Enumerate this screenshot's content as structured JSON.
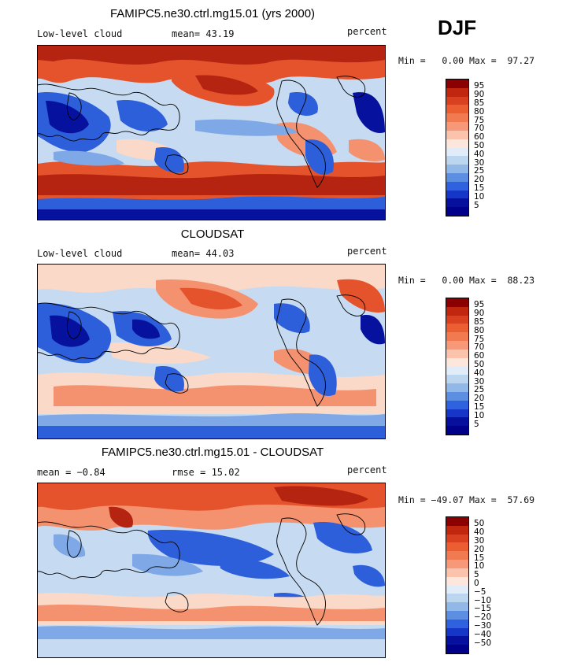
{
  "season": "DJF",
  "panels": [
    {
      "title": "FAMIPC5.ne30.ctrl.mg15.01 (yrs 2000)",
      "left_label": "Low-level cloud",
      "center_label": "mean=  43.19",
      "right_label": "percent",
      "minmax": "Min =   0.00 Max =  97.27",
      "levels": [
        "95",
        "90",
        "85",
        "80",
        "75",
        "70",
        "60",
        "50",
        "40",
        "30",
        "25",
        "20",
        "15",
        "10",
        "5"
      ]
    },
    {
      "title": "CLOUDSAT",
      "left_label": "Low-level cloud",
      "center_label": "mean=  44.03",
      "right_label": "percent",
      "minmax": "Min =   0.00 Max =  88.23",
      "levels": [
        "95",
        "90",
        "85",
        "80",
        "75",
        "70",
        "60",
        "50",
        "40",
        "30",
        "25",
        "20",
        "15",
        "10",
        "5"
      ]
    },
    {
      "title": "FAMIPC5.ne30.ctrl.mg15.01 - CLOUDSAT",
      "left_label": "mean =  −0.84",
      "center_label": "rmse =  15.02",
      "right_label": "percent",
      "minmax": "Min = −49.07 Max =  57.69",
      "levels": [
        "50",
        "40",
        "30",
        "20",
        "15",
        "10",
        "5",
        "0",
        "−5",
        "−10",
        "−15",
        "−20",
        "−30",
        "−40",
        "−50"
      ]
    }
  ],
  "colorbar_colors": [
    "#8b0000",
    "#c0270e",
    "#d9401f",
    "#ea5e32",
    "#f27a50",
    "#f79878",
    "#fbc2ac",
    "#fde6dc",
    "#e2ecf8",
    "#bcd6ef",
    "#92b8e8",
    "#5c8ee2",
    "#2f62de",
    "#1536c6",
    "#06109c",
    "#00008b"
  ],
  "map_palette": {
    "very_low": "#06129e",
    "low": "#2e5fdb",
    "mid_low": "#7ea8e6",
    "neutral_low": "#c6dbf1",
    "neutral_high": "#fbd9c9",
    "mid_high": "#f4926f",
    "high": "#e4532b",
    "very_high": "#b52411"
  }
}
